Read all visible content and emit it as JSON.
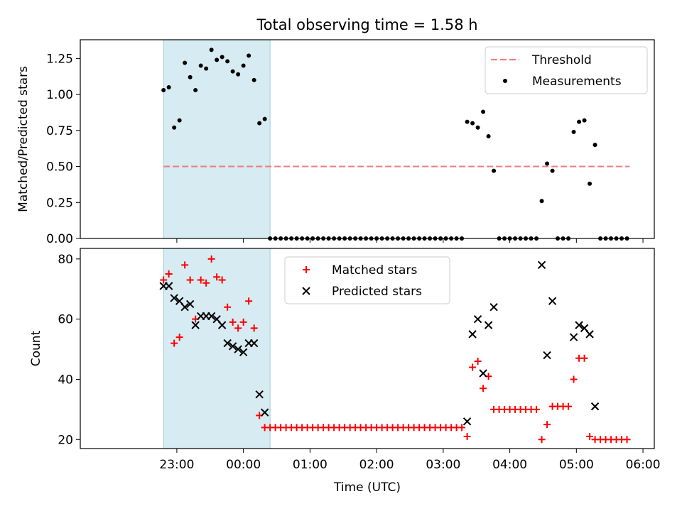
{
  "figure": {
    "title": "Total observing time = 1.58 h",
    "xlabel": "Time (UTC)"
  },
  "xaxis": {
    "unit": "hours since 00:00 UTC (negative = previous day)",
    "range": [
      -2.45,
      6.17
    ],
    "ticks": [
      {
        "value": -1,
        "label": "23:00"
      },
      {
        "value": 0,
        "label": "00:00"
      },
      {
        "value": 1,
        "label": "01:00"
      },
      {
        "value": 2,
        "label": "02:00"
      },
      {
        "value": 3,
        "label": "03:00"
      },
      {
        "value": 4,
        "label": "04:00"
      },
      {
        "value": 5,
        "label": "05:00"
      },
      {
        "value": 6,
        "label": "06:00"
      }
    ]
  },
  "colors": {
    "threshold": "#f08080",
    "measurements": "#000000",
    "matched": "#ff0000",
    "predicted": "#000000",
    "highlight": "#add8e6"
  },
  "chart_data": [
    {
      "type": "scatter",
      "name": "ratio-panel",
      "ylabel": "Matched/Predicted stars",
      "ylim": [
        0,
        1.38
      ],
      "yticks": [
        0,
        0.25,
        0.5,
        0.75,
        1.0,
        1.25
      ],
      "ytick_labels": [
        "0.00",
        "0.25",
        "0.50",
        "0.75",
        "1.00",
        "1.25"
      ],
      "legend": {
        "position": "top-right",
        "entries": [
          "Threshold",
          "Measurements"
        ]
      },
      "highlight_span": [
        -1.2,
        0.4
      ],
      "threshold": {
        "name": "Threshold",
        "y": 0.5,
        "x": [
          -1.2,
          5.8
        ]
      },
      "series": [
        {
          "name": "Measurements",
          "x": [
            -1.2,
            -1.12,
            -1.04,
            -0.96,
            -0.88,
            -0.8,
            -0.72,
            -0.64,
            -0.56,
            -0.48,
            -0.4,
            -0.32,
            -0.24,
            -0.16,
            -0.08,
            0.0,
            0.08,
            0.16,
            0.24,
            0.32,
            0.4,
            0.48,
            0.56,
            0.64,
            0.72,
            0.8,
            0.88,
            0.96,
            1.04,
            1.12,
            1.2,
            1.28,
            1.36,
            1.44,
            1.52,
            1.6,
            1.68,
            1.76,
            1.84,
            1.92,
            2.0,
            2.08,
            2.16,
            2.24,
            2.32,
            2.4,
            2.48,
            2.56,
            2.64,
            2.72,
            2.8,
            2.88,
            2.96,
            3.04,
            3.12,
            3.2,
            3.28,
            3.36,
            3.44,
            3.52,
            3.6,
            3.68,
            3.76,
            3.84,
            3.92,
            4.0,
            4.08,
            4.16,
            4.24,
            4.32,
            4.4,
            4.48,
            4.56,
            4.64,
            4.72,
            4.8,
            4.88,
            4.96,
            5.04,
            5.12,
            5.2,
            5.28,
            5.36,
            5.44,
            5.52,
            5.6,
            5.68,
            5.76
          ],
          "y": [
            1.03,
            1.05,
            0.77,
            0.82,
            1.22,
            1.12,
            1.03,
            1.2,
            1.18,
            1.31,
            1.24,
            1.26,
            1.23,
            1.16,
            1.14,
            1.2,
            1.27,
            1.1,
            0.8,
            0.83,
            0,
            0,
            0,
            0,
            0,
            0,
            0,
            0,
            0,
            0,
            0,
            0,
            0,
            0,
            0,
            0,
            0,
            0,
            0,
            0,
            0,
            0,
            0,
            0,
            0,
            0,
            0,
            0,
            0,
            0,
            0,
            0,
            0,
            0,
            0,
            0,
            0,
            0.81,
            0.8,
            0.77,
            0.88,
            0.71,
            0.47,
            0,
            0,
            0,
            0,
            0,
            0,
            0,
            0,
            0.26,
            0.52,
            0.47,
            0,
            0,
            0,
            0.74,
            0.81,
            0.82,
            0.38,
            0.65,
            0,
            0,
            0,
            0,
            0,
            0
          ]
        }
      ]
    },
    {
      "type": "scatter",
      "name": "count-panel",
      "ylabel": "Count",
      "ylim": [
        17,
        83.5
      ],
      "yticks": [
        20,
        40,
        60,
        80
      ],
      "ytick_labels": [
        "20",
        "40",
        "60",
        "80"
      ],
      "legend": {
        "position": "top-center",
        "entries": [
          "Matched stars",
          "Predicted stars"
        ]
      },
      "highlight_span": [
        -1.2,
        0.4
      ],
      "series": [
        {
          "name": "Matched stars",
          "marker": "plus",
          "x": [
            -1.2,
            -1.12,
            -1.04,
            -0.96,
            -0.88,
            -0.8,
            -0.72,
            -0.64,
            -0.56,
            -0.48,
            -0.4,
            -0.32,
            -0.24,
            -0.16,
            -0.08,
            0.0,
            0.08,
            0.16,
            0.24,
            0.32,
            0.4,
            0.48,
            0.56,
            0.64,
            0.72,
            0.8,
            0.88,
            0.96,
            1.04,
            1.12,
            1.2,
            1.28,
            1.36,
            1.44,
            1.52,
            1.6,
            1.68,
            1.76,
            1.84,
            1.92,
            2.0,
            2.08,
            2.16,
            2.24,
            2.32,
            2.4,
            2.48,
            2.56,
            2.64,
            2.72,
            2.8,
            2.88,
            2.96,
            3.04,
            3.12,
            3.2,
            3.28,
            3.36,
            3.44,
            3.52,
            3.6,
            3.68,
            3.76,
            3.84,
            3.92,
            4.0,
            4.08,
            4.16,
            4.24,
            4.32,
            4.4,
            4.48,
            4.56,
            4.64,
            4.72,
            4.8,
            4.88,
            4.96,
            5.04,
            5.12,
            5.2,
            5.28,
            5.36,
            5.44,
            5.52,
            5.6,
            5.68,
            5.76
          ],
          "y": [
            73,
            75,
            52,
            54,
            78,
            73,
            60,
            73,
            72,
            80,
            74,
            73,
            64,
            59,
            57,
            59,
            66,
            57,
            28,
            24,
            24,
            24,
            24,
            24,
            24,
            24,
            24,
            24,
            24,
            24,
            24,
            24,
            24,
            24,
            24,
            24,
            24,
            24,
            24,
            24,
            24,
            24,
            24,
            24,
            24,
            24,
            24,
            24,
            24,
            24,
            24,
            24,
            24,
            24,
            24,
            24,
            24,
            21,
            44,
            46,
            37,
            41,
            30,
            30,
            30,
            30,
            30,
            30,
            30,
            30,
            30,
            20,
            25,
            31,
            31,
            31,
            31,
            40,
            47,
            47,
            21,
            20,
            20,
            20,
            20,
            20,
            20,
            20
          ]
        },
        {
          "name": "Predicted stars",
          "marker": "x",
          "x": [
            -1.2,
            -1.12,
            -1.04,
            -0.96,
            -0.88,
            -0.8,
            -0.72,
            -0.64,
            -0.56,
            -0.48,
            -0.4,
            -0.32,
            -0.24,
            -0.16,
            -0.08,
            0.0,
            0.08,
            0.16,
            0.24,
            0.32,
            3.36,
            3.44,
            3.52,
            3.6,
            3.68,
            3.76,
            4.48,
            4.56,
            4.64,
            4.96,
            5.04,
            5.12,
            5.2,
            5.28
          ],
          "y": [
            71,
            71,
            67,
            66,
            64,
            65,
            58,
            61,
            61,
            61,
            60,
            58,
            52,
            51,
            50,
            49,
            52,
            52,
            35,
            29,
            26,
            55,
            60,
            42,
            58,
            64,
            78,
            48,
            66,
            54,
            58,
            57,
            55,
            31
          ]
        }
      ]
    }
  ]
}
